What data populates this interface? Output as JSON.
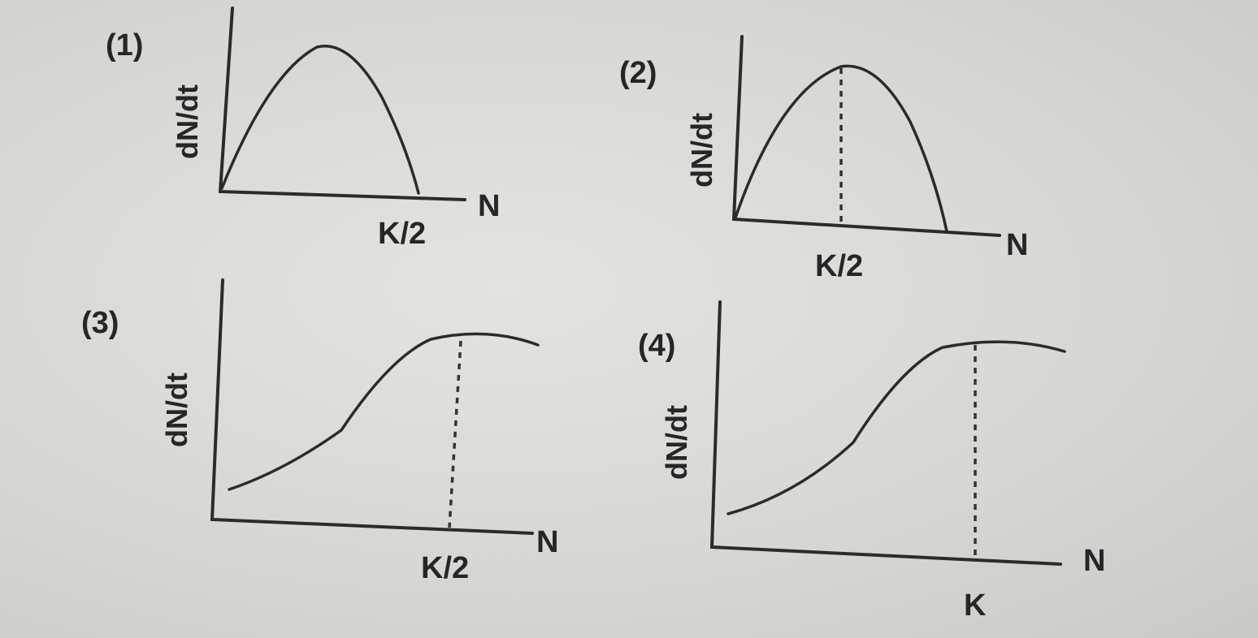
{
  "chart_data": [
    {
      "type": "line",
      "number_label": "(1)",
      "ylabel": "dN/dt",
      "xlabel": "N",
      "tick_labels": [
        "K/2"
      ],
      "curve": "parabola peaking before K/2, reaching zero near K/2",
      "title": ""
    },
    {
      "type": "line",
      "number_label": "(2)",
      "ylabel": "dN/dt",
      "xlabel": "N",
      "tick_labels": [
        "K/2"
      ],
      "curve": "parabola with maximum at K/2 (dashed line at peak)",
      "title": ""
    },
    {
      "type": "line",
      "number_label": "(3)",
      "ylabel": "dN/dt",
      "xlabel": "N",
      "tick_labels": [
        "K/2"
      ],
      "curve": "sigmoid rising and levelling off at K/2 (dashed line)",
      "title": ""
    },
    {
      "type": "line",
      "number_label": "(4)",
      "ylabel": "dN/dt",
      "xlabel": "N",
      "tick_labels": [
        "K"
      ],
      "curve": "sigmoid rising and levelling off at K (dashed line)",
      "title": ""
    }
  ]
}
